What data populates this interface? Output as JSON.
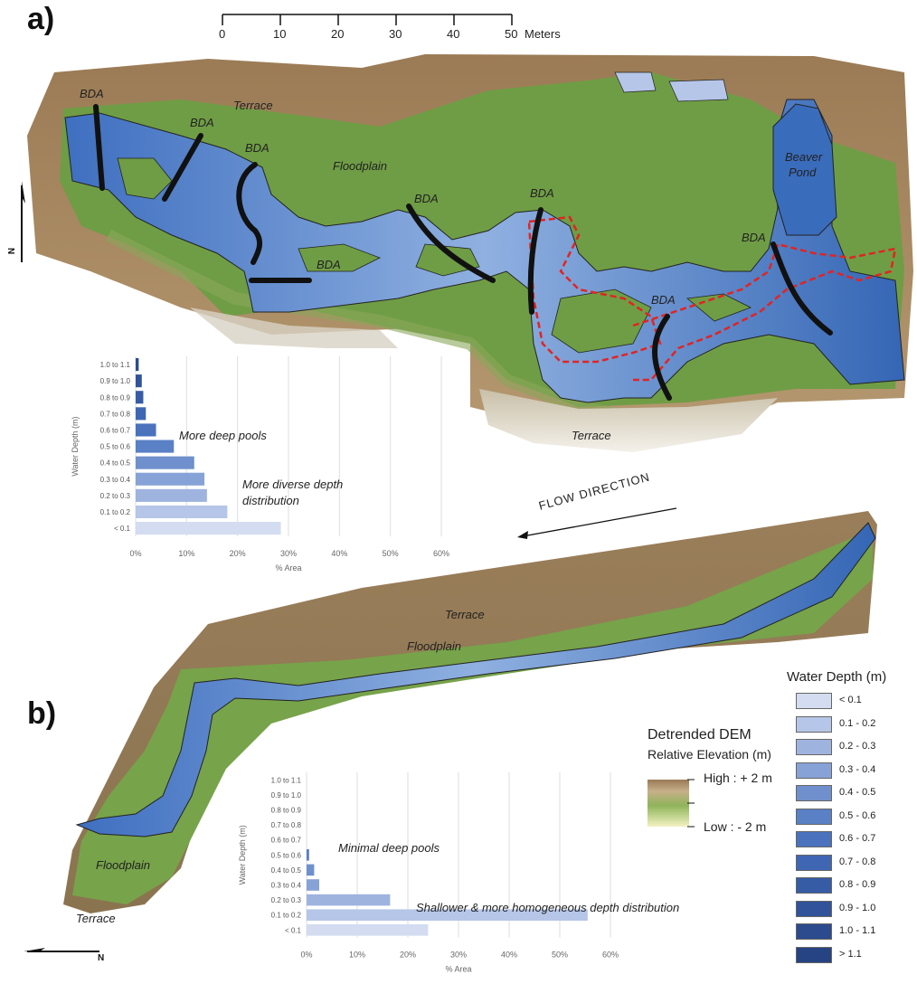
{
  "panel_a": {
    "label": "a)",
    "scale_bar": {
      "ticks": [
        "0",
        "10",
        "20",
        "30",
        "40",
        "50"
      ],
      "unit": "Meters"
    },
    "labels": {
      "terrace_top": "Terrace",
      "terrace_bottom": "Terrace",
      "floodplain": "Floodplain",
      "beaver_pond_1": "Beaver",
      "beaver_pond_2": "Pond",
      "bda": "BDA"
    },
    "north": "N",
    "notes": [
      "More deep pools",
      "More diverse depth",
      "distribution"
    ]
  },
  "flow_direction": "FLOW DIRECTION",
  "panel_b": {
    "label": "b)",
    "labels": {
      "terrace_top": "Terrace",
      "floodplain_top": "Floodplain",
      "floodplain_left": "Floodplain",
      "terrace_left": "Terrace"
    },
    "north": "N",
    "notes": [
      "Minimal deep pools",
      "Shallower & more homogeneous depth distribution"
    ]
  },
  "dem_legend": {
    "title": "Detrended DEM",
    "subtitle": "Relative Elevation (m)",
    "high": "High : + 2 m",
    "low": "Low : - 2 m"
  },
  "depth_legend": {
    "title": "Water Depth  (m)",
    "items": [
      {
        "label": "< 0.1",
        "color": "#d3dcf0"
      },
      {
        "label": "0.1 - 0.2",
        "color": "#b6c6e8"
      },
      {
        "label": "0.2 - 0.3",
        "color": "#9fb3df"
      },
      {
        "label": "0.3 - 0.4",
        "color": "#87a2d6"
      },
      {
        "label": "0.4 - 0.5",
        "color": "#6f90cd"
      },
      {
        "label": "0.5 - 0.6",
        "color": "#5a80c5"
      },
      {
        "label": "0.6 - 0.7",
        "color": "#4a72bd"
      },
      {
        "label": "0.7 - 0.8",
        "color": "#3f66b2"
      },
      {
        "label": "0.8 - 0.9",
        "color": "#375ca6"
      },
      {
        "label": "0.9 - 1.0",
        "color": "#30539a"
      },
      {
        "label": "1.0 - 1.1",
        "color": "#2b4b8e"
      },
      {
        "label": "> 1.1",
        "color": "#264383"
      }
    ]
  },
  "chart_data": [
    {
      "type": "bar",
      "orientation": "horizontal",
      "ylabel": "Water Depth (m)",
      "xlabel": "% Area",
      "categories": [
        "< 0.1",
        "0.1 to 0.2",
        "0.2 to 0.3",
        "0.3 to 0.4",
        "0.4 to 0.5",
        "0.5 to 0.6",
        "0.6 to 0.7",
        "0.7 to 0.8",
        "0.8 to 0.9",
        "0.9 to 1.0",
        "1.0 to 1.1"
      ],
      "values": [
        28.5,
        18.0,
        14.0,
        13.5,
        11.5,
        7.5,
        4.0,
        2.0,
        1.5,
        1.2,
        0.6
      ],
      "xticks": [
        "0%",
        "10%",
        "20%",
        "30%",
        "40%",
        "50%",
        "60%"
      ],
      "xlim": [
        0,
        60
      ]
    },
    {
      "type": "bar",
      "orientation": "horizontal",
      "ylabel": "Water Depth (m)",
      "xlabel": "% Area",
      "categories": [
        "< 0.1",
        "0.1 to 0.2",
        "0.2 to 0.3",
        "0.3 to 0.4",
        "0.4 to 0.5",
        "0.5 to 0.6",
        "0.6 to 0.7",
        "0.7 to 0.8",
        "0.8 to 0.9",
        "0.9 to 1.0",
        "1.0 to 1.1"
      ],
      "values": [
        24.0,
        55.5,
        16.5,
        2.5,
        1.5,
        0.5,
        0,
        0,
        0,
        0,
        0
      ],
      "xticks": [
        "0%",
        "10%",
        "20%",
        "30%",
        "40%",
        "50%",
        "60%"
      ],
      "xlim": [
        0,
        60
      ]
    }
  ]
}
